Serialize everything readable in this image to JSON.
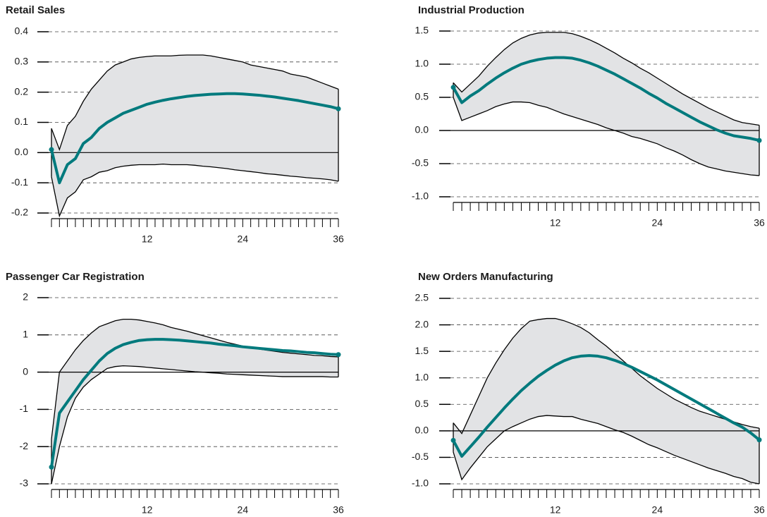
{
  "chart_data": [
    {
      "type": "line",
      "title": "Retail Sales",
      "x": [
        0,
        1,
        2,
        3,
        4,
        5,
        6,
        7,
        8,
        9,
        10,
        11,
        12,
        13,
        14,
        15,
        16,
        17,
        18,
        19,
        20,
        21,
        22,
        23,
        24,
        25,
        26,
        27,
        28,
        29,
        30,
        31,
        32,
        33,
        34,
        35,
        36
      ],
      "xlim": [
        0,
        36
      ],
      "xticks": [
        12,
        24,
        36
      ],
      "ylim": [
        -0.2,
        0.4
      ],
      "yticks": [
        0.4,
        0.3,
        0.2,
        0.1,
        {
          "value": 0,
          "label": "0.0"
        },
        -0.1,
        -0.2
      ],
      "grid": true,
      "series": [
        {
          "color": "#007a7d",
          "values": [
            0.01,
            -0.1,
            -0.04,
            -0.02,
            0.03,
            0.05,
            0.08,
            0.1,
            0.115,
            0.13,
            0.14,
            0.15,
            0.16,
            0.167,
            0.173,
            0.178,
            0.182,
            0.186,
            0.189,
            0.191,
            0.193,
            0.194,
            0.195,
            0.195,
            0.194,
            0.192,
            0.19,
            0.187,
            0.184,
            0.18,
            0.176,
            0.172,
            0.167,
            0.162,
            0.157,
            0.152,
            0.145
          ]
        }
      ],
      "band": {
        "color": "#e2e3e5",
        "upper": [
          0.08,
          0.01,
          0.09,
          0.12,
          0.17,
          0.21,
          0.24,
          0.27,
          0.29,
          0.3,
          0.31,
          0.315,
          0.318,
          0.32,
          0.32,
          0.32,
          0.322,
          0.323,
          0.323,
          0.323,
          0.32,
          0.315,
          0.31,
          0.305,
          0.3,
          0.29,
          0.285,
          0.28,
          0.275,
          0.27,
          0.26,
          0.255,
          0.25,
          0.24,
          0.23,
          0.22,
          0.21
        ],
        "lower": [
          -0.08,
          -0.21,
          -0.15,
          -0.13,
          -0.09,
          -0.08,
          -0.065,
          -0.06,
          -0.05,
          -0.045,
          -0.042,
          -0.04,
          -0.04,
          -0.04,
          -0.038,
          -0.04,
          -0.04,
          -0.04,
          -0.042,
          -0.045,
          -0.047,
          -0.05,
          -0.053,
          -0.057,
          -0.06,
          -0.063,
          -0.066,
          -0.07,
          -0.072,
          -0.075,
          -0.078,
          -0.08,
          -0.083,
          -0.085,
          -0.087,
          -0.09,
          -0.095
        ]
      }
    },
    {
      "type": "line",
      "title": "Industrial Production",
      "x": [
        0,
        1,
        2,
        3,
        4,
        5,
        6,
        7,
        8,
        9,
        10,
        11,
        12,
        13,
        14,
        15,
        16,
        17,
        18,
        19,
        20,
        21,
        22,
        23,
        24,
        25,
        26,
        27,
        28,
        29,
        30,
        31,
        32,
        33,
        34,
        35,
        36
      ],
      "xlim": [
        0,
        36
      ],
      "xticks": [
        12,
        24,
        36
      ],
      "ylim": [
        -1,
        1.5
      ],
      "yticks": [
        1.5,
        {
          "value": 1,
          "label": "1.0"
        },
        0.5,
        {
          "value": 0,
          "label": "0.0"
        },
        -0.5,
        {
          "value": -1,
          "label": "-1.0"
        }
      ],
      "grid": true,
      "series": [
        {
          "color": "#007a7d",
          "values": [
            0.65,
            0.42,
            0.52,
            0.6,
            0.7,
            0.79,
            0.87,
            0.94,
            1.0,
            1.04,
            1.07,
            1.09,
            1.1,
            1.1,
            1.09,
            1.06,
            1.02,
            0.97,
            0.91,
            0.85,
            0.78,
            0.71,
            0.64,
            0.56,
            0.49,
            0.41,
            0.34,
            0.27,
            0.2,
            0.13,
            0.07,
            0.01,
            -0.04,
            -0.08,
            -0.1,
            -0.12,
            -0.15
          ]
        }
      ],
      "band": {
        "color": "#e2e3e5",
        "upper": [
          0.72,
          0.58,
          0.7,
          0.82,
          0.97,
          1.1,
          1.22,
          1.32,
          1.39,
          1.44,
          1.47,
          1.48,
          1.48,
          1.48,
          1.46,
          1.42,
          1.37,
          1.31,
          1.24,
          1.17,
          1.09,
          1.02,
          0.94,
          0.87,
          0.79,
          0.71,
          0.63,
          0.55,
          0.48,
          0.41,
          0.34,
          0.28,
          0.22,
          0.16,
          0.12,
          0.1,
          0.08
        ],
        "lower": [
          0.5,
          0.15,
          0.2,
          0.25,
          0.3,
          0.36,
          0.4,
          0.43,
          0.43,
          0.42,
          0.38,
          0.35,
          0.3,
          0.25,
          0.21,
          0.17,
          0.13,
          0.09,
          0.04,
          0.0,
          -0.04,
          -0.09,
          -0.12,
          -0.16,
          -0.2,
          -0.26,
          -0.31,
          -0.37,
          -0.44,
          -0.5,
          -0.55,
          -0.58,
          -0.61,
          -0.63,
          -0.65,
          -0.67,
          -0.68
        ]
      }
    },
    {
      "type": "line",
      "title": "Passenger Car Registration",
      "x": [
        0,
        1,
        2,
        3,
        4,
        5,
        6,
        7,
        8,
        9,
        10,
        11,
        12,
        13,
        14,
        15,
        16,
        17,
        18,
        19,
        20,
        21,
        22,
        23,
        24,
        25,
        26,
        27,
        28,
        29,
        30,
        31,
        32,
        33,
        34,
        35,
        36
      ],
      "xlim": [
        0,
        36
      ],
      "xticks": [
        12,
        24,
        36
      ],
      "ylim": [
        -3,
        2
      ],
      "yticks": [
        2,
        1,
        0,
        -1,
        -2,
        -3
      ],
      "grid": true,
      "series": [
        {
          "color": "#007a7d",
          "values": [
            -2.55,
            -1.1,
            -0.8,
            -0.5,
            -0.2,
            0.05,
            0.3,
            0.5,
            0.64,
            0.74,
            0.8,
            0.85,
            0.87,
            0.88,
            0.88,
            0.87,
            0.86,
            0.84,
            0.82,
            0.8,
            0.78,
            0.75,
            0.73,
            0.71,
            0.68,
            0.66,
            0.64,
            0.62,
            0.6,
            0.58,
            0.57,
            0.55,
            0.53,
            0.52,
            0.5,
            0.48,
            0.47
          ]
        }
      ],
      "band": {
        "color": "#e2e3e5",
        "upper": [
          -1.8,
          0.0,
          0.3,
          0.6,
          0.85,
          1.05,
          1.22,
          1.3,
          1.38,
          1.42,
          1.42,
          1.4,
          1.36,
          1.32,
          1.27,
          1.2,
          1.15,
          1.1,
          1.04,
          0.98,
          0.92,
          0.86,
          0.8,
          0.75,
          0.7,
          0.66,
          0.62,
          0.59,
          0.56,
          0.53,
          0.51,
          0.49,
          0.47,
          0.45,
          0.44,
          0.42,
          0.41
        ],
        "lower": [
          -3.0,
          -2.0,
          -1.2,
          -0.7,
          -0.4,
          -0.2,
          -0.05,
          0.1,
          0.15,
          0.17,
          0.16,
          0.15,
          0.13,
          0.11,
          0.09,
          0.07,
          0.05,
          0.03,
          0.01,
          0.0,
          -0.02,
          -0.03,
          -0.05,
          -0.06,
          -0.07,
          -0.08,
          -0.09,
          -0.1,
          -0.11,
          -0.12,
          -0.12,
          -0.12,
          -0.12,
          -0.12,
          -0.12,
          -0.13,
          -0.13
        ]
      }
    },
    {
      "type": "line",
      "title": "New Orders Manufacturing",
      "x": [
        0,
        1,
        2,
        3,
        4,
        5,
        6,
        7,
        8,
        9,
        10,
        11,
        12,
        13,
        14,
        15,
        16,
        17,
        18,
        19,
        20,
        21,
        22,
        23,
        24,
        25,
        26,
        27,
        28,
        29,
        30,
        31,
        32,
        33,
        34,
        35,
        36
      ],
      "xlim": [
        0,
        36
      ],
      "xticks": [
        12,
        24,
        36
      ],
      "ylim": [
        -1,
        2.5
      ],
      "yticks": [
        2.5,
        {
          "value": 2,
          "label": "2.0"
        },
        1.5,
        {
          "value": 1,
          "label": "1.0"
        },
        0.5,
        {
          "value": 0,
          "label": "0.0"
        },
        -0.5,
        {
          "value": -1,
          "label": "-1.0"
        }
      ],
      "grid": true,
      "series": [
        {
          "color": "#007a7d",
          "values": [
            -0.18,
            -0.48,
            -0.3,
            -0.12,
            0.07,
            0.25,
            0.43,
            0.6,
            0.76,
            0.9,
            1.03,
            1.14,
            1.24,
            1.32,
            1.38,
            1.41,
            1.42,
            1.41,
            1.38,
            1.33,
            1.27,
            1.2,
            1.12,
            1.04,
            0.96,
            0.87,
            0.78,
            0.69,
            0.6,
            0.51,
            0.42,
            0.33,
            0.24,
            0.15,
            0.07,
            -0.04,
            -0.17
          ]
        }
      ],
      "band": {
        "color": "#e2e3e5",
        "upper": [
          0.15,
          -0.05,
          0.3,
          0.65,
          1.0,
          1.28,
          1.53,
          1.75,
          1.93,
          2.07,
          2.1,
          2.12,
          2.12,
          2.08,
          2.02,
          1.95,
          1.85,
          1.72,
          1.6,
          1.46,
          1.32,
          1.18,
          1.04,
          0.92,
          0.8,
          0.7,
          0.6,
          0.52,
          0.44,
          0.37,
          0.32,
          0.27,
          0.22,
          0.17,
          0.12,
          0.08,
          0.05
        ],
        "lower": [
          -0.4,
          -0.92,
          -0.7,
          -0.5,
          -0.3,
          -0.15,
          0.0,
          0.08,
          0.15,
          0.22,
          0.27,
          0.29,
          0.28,
          0.27,
          0.27,
          0.22,
          0.18,
          0.14,
          0.08,
          0.02,
          -0.03,
          -0.1,
          -0.18,
          -0.26,
          -0.32,
          -0.39,
          -0.46,
          -0.52,
          -0.58,
          -0.64,
          -0.7,
          -0.75,
          -0.8,
          -0.86,
          -0.9,
          -0.97,
          -1.0
        ]
      }
    }
  ]
}
